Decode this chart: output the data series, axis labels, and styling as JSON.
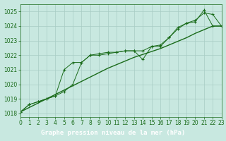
{
  "title": "Graphe pression niveau de la mer (hPa)",
  "x_hours": [
    0,
    1,
    2,
    3,
    4,
    5,
    6,
    7,
    8,
    9,
    10,
    11,
    12,
    13,
    14,
    15,
    16,
    17,
    18,
    19,
    20,
    21,
    22,
    23
  ],
  "pressure_line1": [
    1018.1,
    1018.6,
    1018.8,
    1019.0,
    1019.2,
    1021.0,
    1021.5,
    1021.5,
    1022.0,
    1022.1,
    1022.2,
    1022.2,
    1022.3,
    1022.3,
    1021.7,
    1022.6,
    1022.7,
    1023.2,
    1023.9,
    1024.2,
    1024.4,
    1024.9,
    1024.8,
    1024.0
  ],
  "pressure_line2": [
    1018.1,
    1018.6,
    1018.8,
    1019.0,
    1019.2,
    1019.5,
    1020.0,
    1021.5,
    1022.0,
    1022.0,
    1022.1,
    1022.2,
    1022.3,
    1022.3,
    1022.3,
    1022.6,
    1022.6,
    1023.2,
    1023.8,
    1024.2,
    1024.3,
    1025.1,
    1024.0,
    1024.0
  ],
  "pressure_trend": [
    1018.1,
    1018.4,
    1018.7,
    1019.0,
    1019.3,
    1019.6,
    1019.9,
    1020.2,
    1020.5,
    1020.8,
    1021.1,
    1021.35,
    1021.6,
    1021.85,
    1022.05,
    1022.25,
    1022.45,
    1022.7,
    1022.95,
    1023.2,
    1023.5,
    1023.75,
    1024.0,
    1024.0
  ],
  "ylim": [
    1017.75,
    1025.5
  ],
  "yticks": [
    1018,
    1019,
    1020,
    1021,
    1022,
    1023,
    1024,
    1025
  ],
  "xlim": [
    0,
    23
  ],
  "xticks": [
    0,
    1,
    2,
    3,
    4,
    5,
    6,
    7,
    8,
    9,
    10,
    11,
    12,
    13,
    14,
    15,
    16,
    17,
    18,
    19,
    20,
    21,
    22,
    23
  ],
  "line_color": "#1a6b1a",
  "bg_color": "#c8e8e0",
  "grid_color": "#a8ccc4",
  "title_bg": "#2d6e2d",
  "title_fg": "#ffffff",
  "tick_fontsize": 5.5,
  "title_fontsize": 6.5
}
